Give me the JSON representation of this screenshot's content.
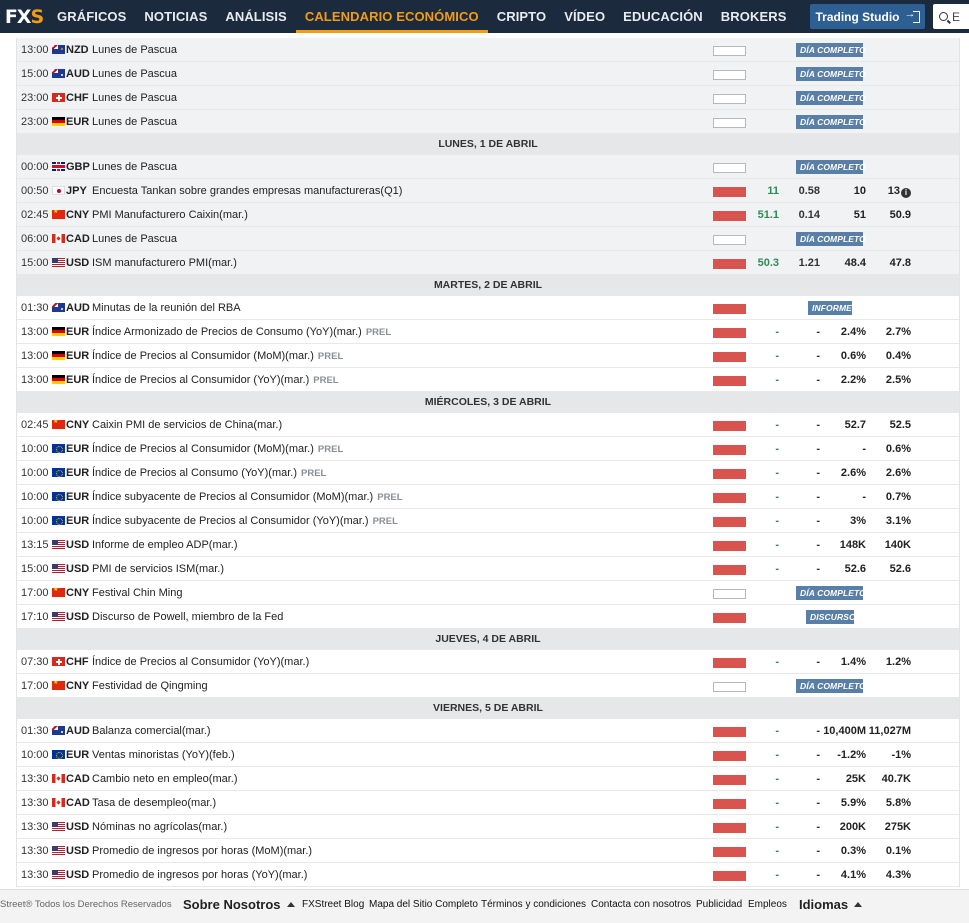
{
  "nav": {
    "logo_fx": "FX",
    "logo_s": "S",
    "items": [
      "GRÁFICOS",
      "NOTICIAS",
      "ANÁLISIS",
      "CALENDARIO ECONÓMICO",
      "CRIPTO",
      "VÍDEO",
      "EDUCACIÓN",
      "BROKERS"
    ],
    "active_index": 3,
    "trading_studio": "Trading Studio",
    "search_placeholder": "E",
    "colors": {
      "bar": "#1b2a3c",
      "accent": "#f39c12",
      "button": "#2e5f93"
    }
  },
  "calendar": {
    "colors": {
      "high_volatility": "#d9534f",
      "badge": "#5a7fa6",
      "actual_positive": "#2e8b57"
    },
    "rows": [
      {
        "type": "event",
        "past": true,
        "time": "13:00",
        "flag": "nz",
        "cur": "NZD",
        "event": "Lunes de Pascua",
        "vol": "low",
        "badge": "DÍA COMPLETO"
      },
      {
        "type": "event",
        "past": true,
        "time": "15:00",
        "flag": "au",
        "cur": "AUD",
        "event": "Lunes de Pascua",
        "vol": "low",
        "badge": "DÍA COMPLETO"
      },
      {
        "type": "event",
        "past": true,
        "time": "23:00",
        "flag": "ch",
        "cur": "CHF",
        "event": "Lunes de Pascua",
        "vol": "low",
        "badge": "DÍA COMPLETO"
      },
      {
        "type": "event",
        "past": true,
        "time": "23:00",
        "flag": "de",
        "cur": "EUR",
        "event": "Lunes de Pascua",
        "vol": "low",
        "badge": "DÍA COMPLETO"
      },
      {
        "type": "day",
        "label": "LUNES, 1 DE ABRIL"
      },
      {
        "type": "event",
        "past": true,
        "time": "00:00",
        "flag": "gb",
        "cur": "GBP",
        "event": "Lunes de Pascua",
        "vol": "low",
        "badge": "DÍA COMPLETO"
      },
      {
        "type": "event",
        "past": true,
        "time": "00:50",
        "flag": "jp",
        "cur": "JPY",
        "event": "Encuesta Tankan sobre grandes empresas manufactureras(Q1)",
        "vol": "high",
        "actual": "11",
        "dev": "0.58",
        "cons": "10",
        "prev": "13",
        "info": true
      },
      {
        "type": "event",
        "past": true,
        "time": "02:45",
        "flag": "cn",
        "cur": "CNY",
        "event": "PMI Manufacturero Caixin(mar.)",
        "vol": "high",
        "actual": "51.1",
        "dev": "0.14",
        "cons": "51",
        "prev": "50.9"
      },
      {
        "type": "event",
        "past": true,
        "time": "06:00",
        "flag": "ca",
        "cur": "CAD",
        "event": "Lunes de Pascua",
        "vol": "low",
        "badge": "DÍA COMPLETO"
      },
      {
        "type": "event",
        "past": true,
        "time": "15:00",
        "flag": "us",
        "cur": "USD",
        "event": "ISM manufacturero PMI(mar.)",
        "vol": "high",
        "actual": "50.3",
        "dev": "1.21",
        "cons": "48.4",
        "prev": "47.8"
      },
      {
        "type": "day",
        "label": "MARTES, 2 DE ABRIL"
      },
      {
        "type": "event",
        "time": "01:30",
        "flag": "au",
        "cur": "AUD",
        "event": "Minutas de la reunión del RBA",
        "vol": "high",
        "badge": "INFORME",
        "badge_kind": "short"
      },
      {
        "type": "event",
        "time": "13:00",
        "flag": "de",
        "cur": "EUR",
        "event": "Índice Armonizado de Precios de Consumo (YoY)(mar.)",
        "prel": "PREL",
        "vol": "high",
        "actual": "-",
        "dev": "-",
        "cons": "2.4%",
        "prev": "2.7%"
      },
      {
        "type": "event",
        "time": "13:00",
        "flag": "de",
        "cur": "EUR",
        "event": "Índice de Precios al Consumidor (MoM)(mar.)",
        "prel": "PREL",
        "vol": "high",
        "actual": "-",
        "dev": "-",
        "cons": "0.6%",
        "prev": "0.4%"
      },
      {
        "type": "event",
        "time": "13:00",
        "flag": "de",
        "cur": "EUR",
        "event": "Índice de Precios al Consumidor (YoY)(mar.)",
        "prel": "PREL",
        "vol": "high",
        "actual": "-",
        "dev": "-",
        "cons": "2.2%",
        "prev": "2.5%"
      },
      {
        "type": "day",
        "label": "MIÉRCOLES, 3 DE ABRIL"
      },
      {
        "type": "event",
        "time": "02:45",
        "flag": "cn",
        "cur": "CNY",
        "event": "Caixin PMI de servicios de China(mar.)",
        "vol": "high",
        "actual": "-",
        "dev": "-",
        "cons": "52.7",
        "prev": "52.5"
      },
      {
        "type": "event",
        "time": "10:00",
        "flag": "eu",
        "cur": "EUR",
        "event": "Índice de Precios al Consumidor (MoM)(mar.)",
        "prel": "PREL",
        "vol": "high",
        "actual": "-",
        "dev": "-",
        "cons": "-",
        "prev": "0.6%"
      },
      {
        "type": "event",
        "time": "10:00",
        "flag": "eu",
        "cur": "EUR",
        "event": "Índice de Precios al Consumo (YoY)(mar.)",
        "prel": "PREL",
        "vol": "high",
        "actual": "-",
        "dev": "-",
        "cons": "2.6%",
        "prev": "2.6%"
      },
      {
        "type": "event",
        "time": "10:00",
        "flag": "eu",
        "cur": "EUR",
        "event": "Índice subyacente de Precios al Consumidor (MoM)(mar.)",
        "prel": "PREL",
        "vol": "high",
        "actual": "-",
        "dev": "-",
        "cons": "-",
        "prev": "0.7%"
      },
      {
        "type": "event",
        "time": "10:00",
        "flag": "eu",
        "cur": "EUR",
        "event": "Índice subyacente de Precios al Consumidor (YoY)(mar.)",
        "prel": "PREL",
        "vol": "high",
        "actual": "-",
        "dev": "-",
        "cons": "3%",
        "prev": "3.1%"
      },
      {
        "type": "event",
        "time": "13:15",
        "flag": "us",
        "cur": "USD",
        "event": "Informe de empleo ADP(mar.)",
        "vol": "high",
        "actual": "-",
        "dev": "-",
        "cons": "148K",
        "prev": "140K"
      },
      {
        "type": "event",
        "time": "15:00",
        "flag": "us",
        "cur": "USD",
        "event": "PMI de servicios ISM(mar.)",
        "vol": "high",
        "actual": "-",
        "dev": "-",
        "cons": "52.6",
        "prev": "52.6"
      },
      {
        "type": "event",
        "time": "17:00",
        "flag": "cn",
        "cur": "CNY",
        "event": "Festival Chin Ming",
        "vol": "low",
        "badge": "DÍA COMPLETO"
      },
      {
        "type": "event",
        "time": "17:10",
        "flag": "us",
        "cur": "USD",
        "event": "Discurso de Powell, miembro de la Fed",
        "vol": "high",
        "badge": "DISCURSO",
        "badge_kind": "disc"
      },
      {
        "type": "day",
        "label": "JUEVES, 4 DE ABRIL"
      },
      {
        "type": "event",
        "time": "07:30",
        "flag": "ch",
        "cur": "CHF",
        "event": "Índice de Precios al Consumidor (YoY)(mar.)",
        "vol": "high",
        "actual": "-",
        "dev": "-",
        "cons": "1.4%",
        "prev": "1.2%"
      },
      {
        "type": "event",
        "time": "17:00",
        "flag": "cn",
        "cur": "CNY",
        "event": "Festividad de Qingming",
        "vol": "low",
        "badge": "DÍA COMPLETO"
      },
      {
        "type": "day",
        "label": "VIERNES, 5 DE ABRIL"
      },
      {
        "type": "event",
        "time": "01:30",
        "flag": "au",
        "cur": "AUD",
        "event": "Balanza comercial(mar.)",
        "vol": "high",
        "actual": "-",
        "dev": "-",
        "cons": "10,400M",
        "prev": "11,027M"
      },
      {
        "type": "event",
        "time": "10:00",
        "flag": "eu",
        "cur": "EUR",
        "event": "Ventas minoristas (YoY)(feb.)",
        "vol": "high",
        "actual": "-",
        "dev": "-",
        "cons": "-1.2%",
        "prev": "-1%"
      },
      {
        "type": "event",
        "time": "13:30",
        "flag": "ca",
        "cur": "CAD",
        "event": "Cambio neto en empleo(mar.)",
        "vol": "high",
        "actual": "-",
        "dev": "-",
        "cons": "25K",
        "prev": "40.7K"
      },
      {
        "type": "event",
        "time": "13:30",
        "flag": "ca",
        "cur": "CAD",
        "event": "Tasa de desempleo(mar.)",
        "vol": "high",
        "actual": "-",
        "dev": "-",
        "cons": "5.9%",
        "prev": "5.8%"
      },
      {
        "type": "event",
        "time": "13:30",
        "flag": "us",
        "cur": "USD",
        "event": "Nóminas no agrícolas(mar.)",
        "vol": "high",
        "actual": "-",
        "dev": "-",
        "cons": "200K",
        "prev": "275K"
      },
      {
        "type": "event",
        "time": "13:30",
        "flag": "us",
        "cur": "USD",
        "event": "Promedio de ingresos por horas (MoM)(mar.)",
        "vol": "high",
        "actual": "-",
        "dev": "-",
        "cons": "0.3%",
        "prev": "0.1%"
      },
      {
        "type": "event",
        "time": "13:30",
        "flag": "us",
        "cur": "USD",
        "event": "Promedio de ingresos por horas (YoY)(mar.)",
        "vol": "high",
        "actual": "-",
        "dev": "-",
        "cons": "4.1%",
        "prev": "4.3%"
      }
    ]
  },
  "footer": {
    "copyright": "Street® Todos los Derechos Reservados",
    "about": "Sobre Nosotros",
    "links": [
      "FXStreet Blog",
      "Mapa del Sitio Completo",
      "Términos y condiciones",
      "Contacta con nosotros",
      "Publicidad",
      "Empleos"
    ],
    "languages": "Idiomas"
  }
}
